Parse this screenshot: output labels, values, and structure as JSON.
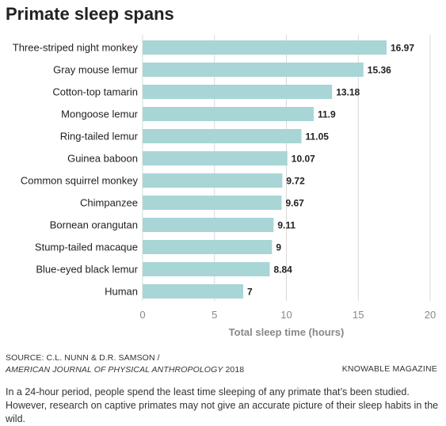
{
  "title": "Primate sleep spans",
  "chart_data": {
    "type": "bar",
    "orientation": "horizontal",
    "categories": [
      "Three-striped night monkey",
      "Gray mouse lemur",
      "Cotton-top tamarin",
      "Mongoose lemur",
      "Ring-tailed lemur",
      "Guinea baboon",
      "Common squirrel monkey",
      "Chimpanzee",
      "Bornean orangutan",
      "Stump-tailed macaque",
      "Blue-eyed black lemur",
      "Human"
    ],
    "values": [
      16.97,
      15.36,
      13.18,
      11.9,
      11.05,
      10.07,
      9.72,
      9.67,
      9.11,
      9,
      8.84,
      7
    ],
    "value_labels": [
      "16.97",
      "15.36",
      "13.18",
      "11.9",
      "11.05",
      "10.07",
      "9.72",
      "9.67",
      "9.11",
      "9",
      "8.84",
      "7"
    ],
    "xlabel": "Total sleep time (hours)",
    "xlim": [
      0,
      20
    ],
    "xticks": [
      0,
      5,
      10,
      15,
      20
    ],
    "xtick_labels": [
      "0",
      "5",
      "10",
      "15",
      "20"
    ],
    "grid": true,
    "bar_color": "#a8d5d5",
    "grid_color": "#d9d9d9"
  },
  "source": {
    "line1": "SOURCE: C.L. NUNN & D.R. SAMSON /",
    "journal": "AMERICAN JOURNAL OF PHYSICAL ANTHROPOLOGY",
    "year": "2018"
  },
  "publisher": "KNOWABLE MAGAZINE",
  "caption": "In a 24-hour period, people spend the least time sleeping of any primate that’s been studied. However, research on captive primates may not give an accurate picture of their sleep habits in the wild."
}
